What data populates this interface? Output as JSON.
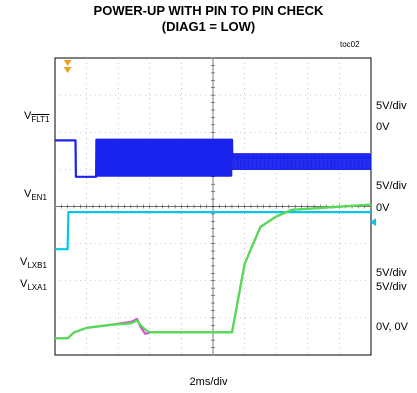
{
  "chart_data": {
    "type": "line",
    "title": "POWER-UP WITH PIN TO PIN CHECK",
    "subtitle": "(DIAG1 = LOW)",
    "figure_id": "toc02",
    "xlabel": "2ms/div",
    "x_unit": "ms",
    "xlim": [
      0,
      20
    ],
    "grid": true,
    "divisions": {
      "x": 10,
      "y": 8
    },
    "channels": [
      {
        "name_main": "V",
        "name_sub": "FLT1",
        "sub_overline": true,
        "scale": "5V/div",
        "zero": "0V",
        "color": "#1a22ee",
        "zero_div": 4.8,
        "volts_per_div": 5,
        "x": [
          0,
          1.3,
          1.32,
          2.6,
          2.62,
          11.2,
          11.22,
          20
        ],
        "v": [
          4.9,
          4.9,
          0.0,
          0.0,
          5.0,
          5.0,
          2.6,
          2.6
        ],
        "burst_segments": [
          {
            "x_start": 2.62,
            "x_end": 11.2,
            "v_high": 5.0,
            "v_low": 0.1,
            "period": 0.08
          },
          {
            "x_start": 11.22,
            "x_end": 20,
            "v_high": 3.1,
            "v_low": 1.0,
            "period": 0.17
          }
        ]
      },
      {
        "name_main": "V",
        "name_sub": "EN1",
        "sub_overline": false,
        "scale": "5V/div",
        "zero": "0V",
        "color": "#00c8e6",
        "zero_div": 2.85,
        "volts_per_div": 5,
        "x": [
          0,
          0.8,
          0.85,
          20
        ],
        "v": [
          0.0,
          0.0,
          5.0,
          5.0
        ]
      },
      {
        "name_main": "V",
        "name_sub": "LXB1",
        "sub_overline": false,
        "scale": "5V/div",
        "zero": "0V",
        "color": "#e04ad8",
        "zero_div": 0.45,
        "volts_per_div": 5,
        "x": [
          0,
          0.8,
          1.2,
          2.0,
          3.5,
          4.8,
          5.2,
          5.4,
          5.7,
          6.0,
          11.2,
          12.0,
          13.0,
          14.0,
          15.0,
          20
        ],
        "v": [
          0.0,
          0.0,
          0.8,
          1.4,
          1.8,
          2.2,
          2.6,
          1.6,
          0.6,
          0.8,
          0.8,
          10.0,
          15.0,
          16.4,
          17.3,
          18.0
        ]
      },
      {
        "name_main": "V",
        "name_sub": "LXA1",
        "sub_overline": false,
        "scale": "5V/div",
        "zero": "0V",
        "color": "#4ee04e",
        "zero_div": 0.45,
        "volts_per_div": 5,
        "x": [
          0,
          0.8,
          1.2,
          2.0,
          3.5,
          4.8,
          5.2,
          5.4,
          5.7,
          6.0,
          11.2,
          12.0,
          13.0,
          14.0,
          15.0,
          20
        ],
        "v": [
          0.0,
          0.0,
          0.8,
          1.4,
          1.8,
          2.0,
          2.4,
          1.8,
          1.2,
          0.8,
          0.8,
          10.0,
          15.0,
          16.4,
          17.3,
          18.0
        ]
      }
    ],
    "right_labels": {
      "ch1_scale": "5V/div",
      "ch1_zero": "0V",
      "ch2_scale": "5V/div",
      "ch2_zero": "0V",
      "ch34_scale_a": "5V/div",
      "ch34_scale_b": "5V/div",
      "ch34_zero": "0V, 0V"
    }
  }
}
